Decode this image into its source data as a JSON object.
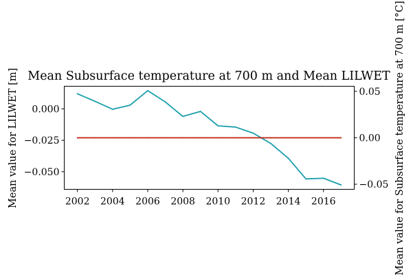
{
  "chart_data": {
    "type": "line",
    "title": "Mean Subsurface temperature at 700 m and Mean LILWET",
    "x": [
      2002,
      2003,
      2004,
      2005,
      2006,
      2007,
      2008,
      2009,
      2010,
      2011,
      2012,
      2013,
      2014,
      2015,
      2016,
      2017
    ],
    "xlim": [
      2001.25,
      2017.75
    ],
    "x_ticks": [
      2002,
      2004,
      2006,
      2008,
      2010,
      2012,
      2014,
      2016
    ],
    "x_tick_labels": [
      "2002",
      "2004",
      "2006",
      "2008",
      "2010",
      "2012",
      "2014",
      "2016"
    ],
    "left_axis": {
      "label": "Mean value for LILWET [m]",
      "ylim": [
        -0.064,
        0.018
      ],
      "ticks": [
        0.0,
        -0.025,
        -0.05
      ],
      "tick_labels": [
        "0.000",
        "−0.025",
        "−0.050"
      ]
    },
    "right_axis": {
      "label": "Mean value for Subsurface temperature at 700 m [°C]",
      "ylim": [
        -0.0555,
        0.0555
      ],
      "ticks": [
        0.05,
        0.0,
        -0.05
      ],
      "tick_labels": [
        "0.05",
        "0.00",
        "−0.05"
      ]
    },
    "series": [
      {
        "axis": "left",
        "color": "#1a9fab",
        "values": [
          0.012,
          0.006,
          -0.0003,
          0.003,
          0.0145,
          0.0055,
          -0.006,
          -0.002,
          -0.0135,
          -0.0145,
          -0.0193,
          -0.0275,
          -0.0393,
          -0.0557,
          -0.0552,
          -0.0605
        ]
      },
      {
        "axis": "right",
        "color": "#c0200e",
        "values": [
          0.0,
          0.0,
          0.0,
          0.0,
          0.0,
          0.0,
          0.0,
          0.0,
          0.0,
          0.0,
          0.0,
          0.0,
          0.0,
          0.0,
          0.0,
          0.0
        ]
      }
    ],
    "grid": false
  }
}
